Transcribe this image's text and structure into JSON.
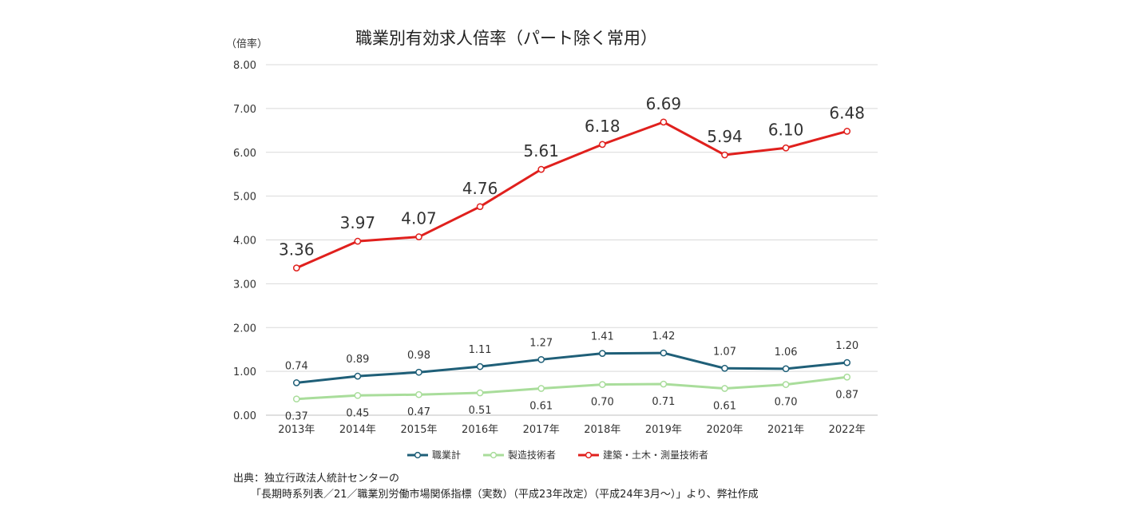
{
  "chart_data": {
    "type": "line",
    "title": "職業別有効求人倍率（パート除く常用）",
    "y_unit": "（倍率）",
    "categories": [
      "2013年",
      "2014年",
      "2015年",
      "2016年",
      "2017年",
      "2018年",
      "2019年",
      "2020年",
      "2021年",
      "2022年"
    ],
    "ylim": [
      0,
      8
    ],
    "yticks": [
      "0.00",
      "1.00",
      "2.00",
      "3.00",
      "4.00",
      "5.00",
      "6.00",
      "7.00",
      "8.00"
    ],
    "grid": true,
    "legend_position": "bottom",
    "series": [
      {
        "name": "職業計",
        "color": "#1f5f78",
        "values": [
          0.74,
          0.89,
          0.98,
          1.11,
          1.27,
          1.41,
          1.42,
          1.07,
          1.06,
          1.2
        ],
        "labels": [
          "0.74",
          "0.89",
          "0.98",
          "1.11",
          "1.27",
          "1.41",
          "1.42",
          "1.07",
          "1.06",
          "1.20"
        ],
        "label_position": "above"
      },
      {
        "name": "製造技術者",
        "color": "#a9dd9b",
        "values": [
          0.37,
          0.45,
          0.47,
          0.51,
          0.61,
          0.7,
          0.71,
          0.61,
          0.7,
          0.87
        ],
        "labels": [
          "0.37",
          "0.45",
          "0.47",
          "0.51",
          "0.61",
          "0.70",
          "0.71",
          "0.61",
          "0.70",
          "0.87"
        ],
        "label_position": "below"
      },
      {
        "name": "建築・土木・測量技術者",
        "color": "#e0201d",
        "values": [
          3.36,
          3.97,
          4.07,
          4.76,
          5.61,
          6.18,
          6.69,
          5.94,
          6.1,
          6.48
        ],
        "labels": [
          "3.36",
          "3.97",
          "4.07",
          "4.76",
          "5.61",
          "6.18",
          "6.69",
          "5.94",
          "6.10",
          "6.48"
        ],
        "label_position": "above"
      }
    ]
  },
  "source": {
    "line1": "出典：独立行政法人統計センターの",
    "line2": "「長期時系列表／21／職業別労働市場関係指標（実数）（平成23年改定）（平成24年3月～）」より、弊社作成"
  }
}
